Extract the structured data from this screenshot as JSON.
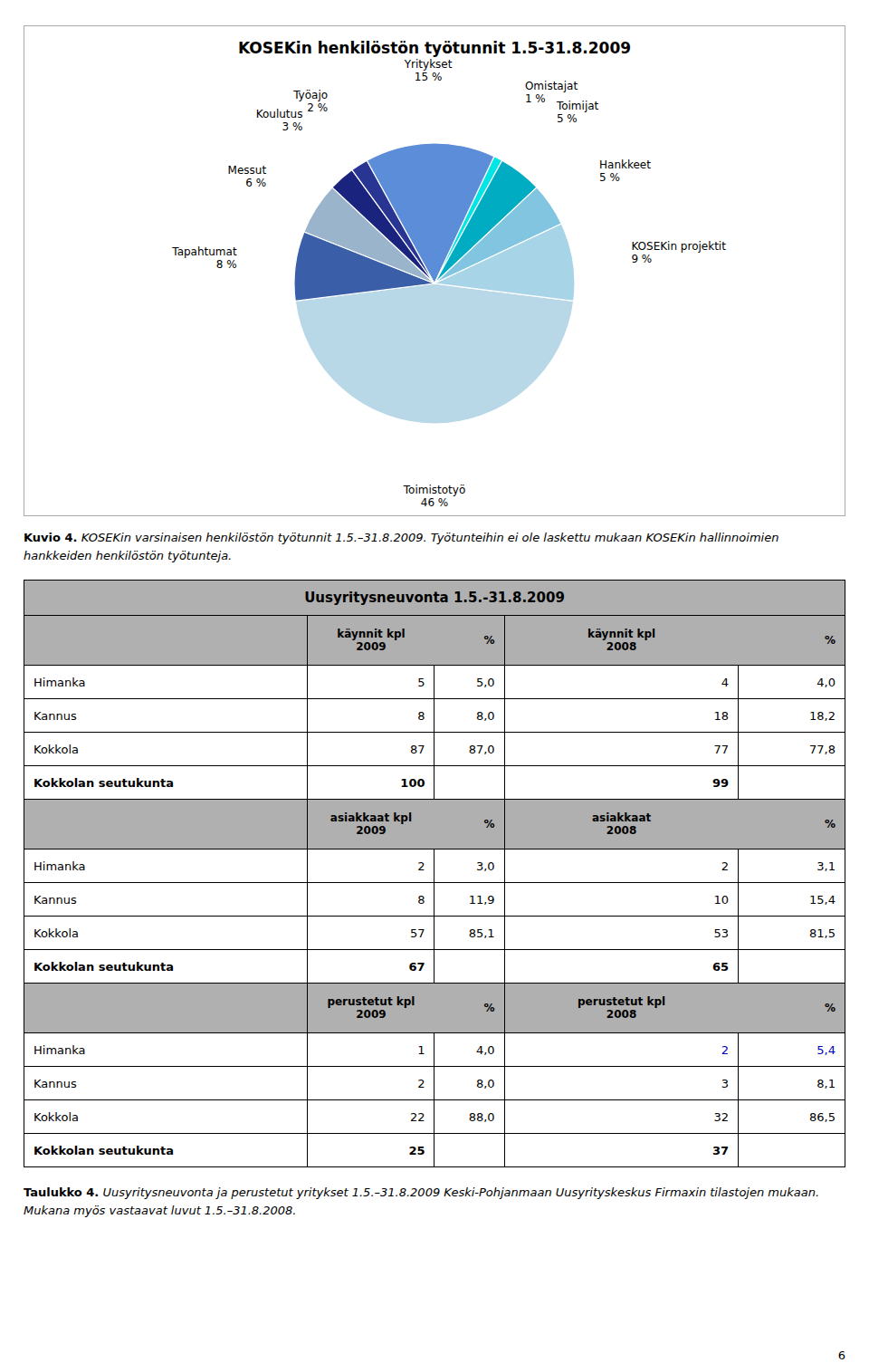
{
  "chart_data": [
    {
      "type": "pie",
      "title": "KOSEKin henkilöstön työtunnit 1.5-31.8.2009",
      "categories": [
        "Toimistotyö",
        "Tapahtumat",
        "Messut",
        "Koulutus",
        "Työajo",
        "Yritykset",
        "Omistajat",
        "Toimijat",
        "Hankkeet",
        "KOSEKin projektit"
      ],
      "values": [
        46,
        8,
        6,
        3,
        2,
        15,
        1,
        5,
        5,
        9
      ],
      "value_labels": [
        "46 %",
        "8 %",
        "6 %",
        "3 %",
        "2 %",
        "15 %",
        "1 %",
        "5 %",
        "5 %",
        "9 %"
      ],
      "colors": [
        "#b8d8e8",
        "#3a5fa8",
        "#9ab4cc",
        "#1a237e",
        "#283593",
        "#5b8dd9",
        "#00e5e5",
        "#00acc1",
        "#81c5e0",
        "#a8d4e8"
      ],
      "data_labels": true,
      "annotations": [
        "Kuvio 4.",
        "KOSEKin varsinaisen henkilöstön työtunnit 1.5.–31.8.2009. Työtunteihin ei ole laskettu mukaan KOSEKin hallinnoimien hankkeiden henkilöstön työtunteja."
      ]
    },
    {
      "type": "table",
      "title": "Uusyritysneuvonta 1.5.-31.8.2009",
      "color": "#b0b0b0",
      "sections": [
        {
          "headers": [
            "käynnit kpl\n2009",
            "%",
            "käynnit kpl\n2008",
            "%"
          ],
          "rows": [
            {
              "name": "Himanka",
              "values": [
                5,
                5.0,
                4,
                4.0
              ],
              "value_labels": [
                "5",
                "5,0",
                "4",
                "4,0"
              ]
            },
            {
              "name": "Kannus",
              "values": [
                8,
                8.0,
                18,
                18.2
              ],
              "value_labels": [
                "8",
                "8,0",
                "18",
                "18,2"
              ]
            },
            {
              "name": "Kokkola",
              "values": [
                87,
                87.0,
                77,
                77.8
              ],
              "value_labels": [
                "87",
                "87,0",
                "77",
                "77,8"
              ]
            }
          ],
          "total": {
            "name": "Kokkolan seutukunta",
            "values": [
              100,
              99
            ]
          }
        },
        {
          "headers": [
            "asiakkaat kpl\n2009",
            "%",
            "asiakkaat\n2008",
            "%"
          ],
          "rows": [
            {
              "name": "Himanka",
              "values": [
                2,
                3.0,
                2,
                3.1
              ],
              "value_labels": [
                "2",
                "3,0",
                "2",
                "3,1"
              ]
            },
            {
              "name": "Kannus",
              "values": [
                8,
                11.9,
                10,
                15.4
              ],
              "value_labels": [
                "8",
                "11,9",
                "10",
                "15,4"
              ]
            },
            {
              "name": "Kokkola",
              "values": [
                57,
                85.1,
                53,
                81.5
              ],
              "value_labels": [
                "57",
                "85,1",
                "53",
                "81,5"
              ]
            }
          ],
          "total": {
            "name": "Kokkolan seutukunta",
            "values": [
              67,
              65
            ]
          }
        },
        {
          "headers": [
            "perustetut kpl\n2009",
            "%",
            "perustetut kpl\n2008",
            "%"
          ],
          "rows": [
            {
              "name": "Himanka",
              "values": [
                1,
                4.0,
                2,
                5.4
              ],
              "value_labels": [
                "1",
                "4,0",
                "2",
                "5,4"
              ],
              "color": "#0000bb"
            },
            {
              "name": "Kannus",
              "values": [
                2,
                8.0,
                3,
                8.1
              ],
              "value_labels": [
                "2",
                "8,0",
                "3",
                "8,1"
              ]
            },
            {
              "name": "Kokkola",
              "values": [
                22,
                88.0,
                32,
                86.5
              ],
              "value_labels": [
                "22",
                "88,0",
                "32",
                "86,5"
              ]
            }
          ],
          "total": {
            "name": "Kokkolan seutukunta",
            "values": [
              25,
              37
            ]
          }
        }
      ],
      "annotations": [
        "Taulukko 4.",
        "Uusyritysneuvonta ja perustetut yritykset 1.5.–31.8.2009 Keski-Pohjanmaan Uusyrityskeskus Firmaxin tilastojen mukaan. Mukana myös vastaavat luvut 1.5.–31.8.2008.",
        "6"
      ]
    }
  ]
}
